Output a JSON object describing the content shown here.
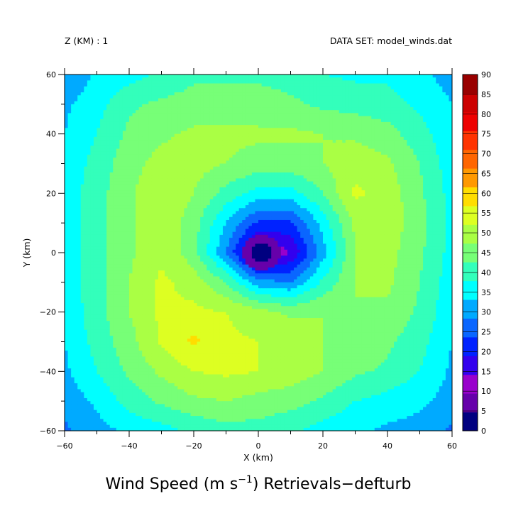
{
  "header": {
    "level_label": "Z (KM) : 1",
    "dataset_label": "DATA SET: model_winds.dat"
  },
  "chart_data": {
    "type": "heatmap",
    "title": "Wind Speed (m s",
    "title_exponent": "−1",
    "title_suffix": ") Retrievals−defturb",
    "xlabel": "X (km)",
    "ylabel": "Y (km)",
    "xlim": [
      -60,
      60
    ],
    "ylim": [
      -60,
      60
    ],
    "x_ticks": [
      -60,
      -40,
      -20,
      0,
      20,
      40,
      60
    ],
    "y_ticks": [
      -60,
      -40,
      -20,
      0,
      20,
      40,
      60
    ],
    "x_tick_labels": [
      "−60",
      "−40",
      "−20",
      "0",
      "20",
      "40",
      "60"
    ],
    "y_tick_labels": [
      "−60",
      "−40",
      "−20",
      "0",
      "20",
      "40",
      "60"
    ],
    "contour_levels": [
      0,
      5,
      10,
      15,
      20,
      25,
      30,
      35,
      40,
      45,
      50,
      55,
      60,
      65,
      70,
      75,
      80,
      85,
      90
    ],
    "colorbar_labels": [
      "0",
      "5",
      "10",
      "15",
      "20",
      "25",
      "30",
      "35",
      "40",
      "45",
      "50",
      "55",
      "60",
      "65",
      "70",
      "75",
      "80",
      "85",
      "90"
    ],
    "colorbar_colors": [
      "#000080",
      "#6600aa",
      "#9900cc",
      "#3300ee",
      "#0022ff",
      "#0a66ff",
      "#00aaff",
      "#00ffff",
      "#33ffbb",
      "#77ff77",
      "#aaff44",
      "#ddff22",
      "#ffdd00",
      "#ff9900",
      "#ff6600",
      "#ff3300",
      "#ee0000",
      "#cc0000",
      "#990000"
    ],
    "field": {
      "description_model": "vortex",
      "center": [
        1,
        0
      ],
      "grid_x": [
        -60,
        -50,
        -40,
        -30,
        -20,
        -10,
        0,
        10,
        20,
        30,
        40,
        50,
        60
      ],
      "grid_y": [
        60,
        50,
        40,
        30,
        20,
        10,
        0,
        -10,
        -20,
        -30,
        -40,
        -50,
        -60
      ],
      "values": [
        [
          30,
          36,
          38,
          41,
          44,
          44,
          44,
          43,
          40,
          39,
          39,
          36,
          33
        ],
        [
          34,
          38,
          44,
          46,
          47,
          48,
          47,
          46,
          44,
          43,
          42,
          39,
          35
        ],
        [
          35,
          40,
          46,
          49,
          51,
          51,
          51,
          51,
          50,
          49,
          47,
          42,
          36
        ],
        [
          36,
          42,
          48,
          52,
          52,
          50,
          48,
          48,
          50,
          53,
          51,
          45,
          37
        ],
        [
          37,
          43,
          49,
          55,
          50,
          43,
          38,
          38,
          45,
          56,
          53,
          46,
          38
        ],
        [
          37,
          43,
          49,
          54,
          47,
          35,
          24,
          24,
          37,
          51,
          53,
          47,
          38
        ],
        [
          37,
          43,
          49,
          54,
          47,
          30,
          8,
          15,
          33,
          50,
          52,
          46,
          38
        ],
        [
          37,
          43,
          50,
          56,
          53,
          45,
          32,
          30,
          41,
          50,
          51,
          45,
          37
        ],
        [
          36,
          43,
          50,
          56,
          56,
          55,
          52,
          49,
          50,
          50,
          49,
          44,
          36
        ],
        [
          35,
          42,
          48,
          56,
          61,
          56,
          55,
          54,
          50,
          48,
          46,
          42,
          35
        ],
        [
          34,
          40,
          46,
          51,
          55,
          56,
          55,
          53,
          50,
          46,
          44,
          40,
          34
        ],
        [
          32,
          36,
          42,
          46,
          49,
          50,
          48,
          47,
          44,
          40,
          38,
          36,
          33
        ],
        [
          29,
          33,
          36,
          38,
          41,
          43,
          43,
          41,
          38,
          36,
          34,
          33,
          29
        ]
      ]
    }
  }
}
